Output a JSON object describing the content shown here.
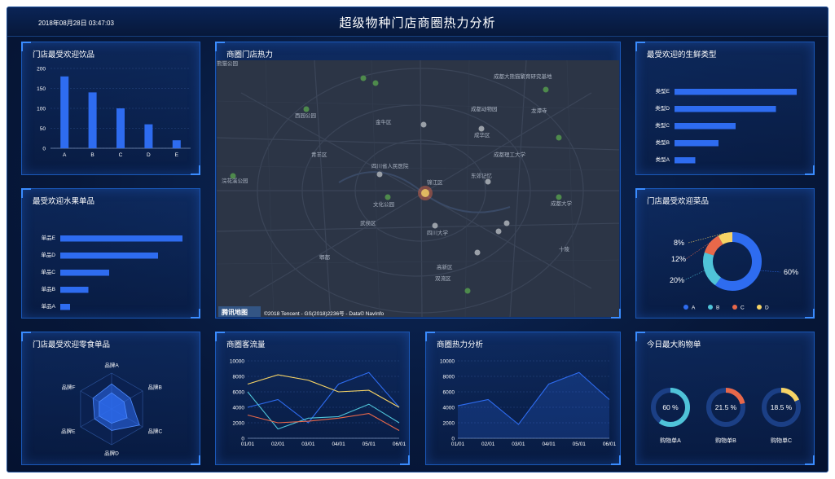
{
  "header": {
    "title": "超级物种门店商圈热力分析",
    "time": "2018年08月28日 03:47:03"
  },
  "panels": {
    "drinks": {
      "title": "门店最受欢迎饮品"
    },
    "map": {
      "title": "商圈门店热力"
    },
    "fresh": {
      "title": "最受欢迎的生鲜类型"
    },
    "fruit": {
      "title": "最受欢迎水果单品"
    },
    "dishes": {
      "title": "门店最受欢迎菜品"
    },
    "snacks": {
      "title": "门店最受欢迎零食单品"
    },
    "traffic": {
      "title": "商圈客流量"
    },
    "heat": {
      "title": "商圈热力分析"
    },
    "orders": {
      "title": "今日最大购物单"
    }
  },
  "map": {
    "labels": {
      "north": "熊猫公园",
      "chenghua": "成华区",
      "jinniu": "金牛区",
      "qingyang": "青羊区",
      "wuhou": "武侯区",
      "jinjiang": "锦江区",
      "gaoxin": "高新区",
      "shuangliu": "双流区",
      "pixian": "郫都",
      "sichuan_museum": "四川省人民医院",
      "sichuan_univ": "四川大学",
      "chengdu_uni": "成都大学",
      "culture_park": "文化公园",
      "xiyuan": "西园公园",
      "dongjiao": "东郊记忆",
      "tech_univ": "成都理工大学",
      "chengdu_zoo": "成都动物园",
      "panda_base": "成都大熊猫繁育研究基地",
      "huanhua": "浣花溪公园",
      "longtan": "龙潭寺",
      "shiling": "十陵"
    },
    "watermark": "腾讯地图",
    "copyright": "©2018 Tencent - GS(2018)2236号 - Data© NavInfo"
  },
  "chart_data": [
    {
      "type": "bar",
      "title": "门店最受欢迎饮品",
      "categories": [
        "A",
        "B",
        "C",
        "D",
        "E"
      ],
      "values": [
        180,
        140,
        100,
        60,
        20
      ],
      "ylim": [
        0,
        200
      ],
      "yticks": [
        0,
        50,
        100,
        150,
        200
      ],
      "color": "#2e6cf0"
    },
    {
      "type": "bar",
      "orientation": "horizontal",
      "title": "最受欢迎的生鲜类型",
      "categories": [
        "类型E",
        "类型D",
        "类型C",
        "类型B",
        "类型A"
      ],
      "values": [
        100,
        83,
        50,
        36,
        17
      ],
      "color": "#2e6cf0"
    },
    {
      "type": "bar",
      "orientation": "horizontal",
      "title": "最受欢迎水果单品",
      "categories": [
        "单品E",
        "单品D",
        "单品C",
        "单品B",
        "单品A"
      ],
      "values": [
        100,
        80,
        40,
        23,
        8
      ],
      "color": "#2e6cf0"
    },
    {
      "type": "pie",
      "title": "门店最受欢迎菜品",
      "categories": [
        "A",
        "B",
        "C",
        "D"
      ],
      "values": [
        60,
        20,
        12,
        8
      ],
      "labels": [
        "60%",
        "20%",
        "12%",
        "8%"
      ],
      "colors": [
        "#2e6cf0",
        "#4fc3d8",
        "#e8684a",
        "#f6d365"
      ]
    },
    {
      "type": "radar",
      "title": "门店最受欢迎零食单品",
      "categories": [
        "品牌A",
        "品牌B",
        "品牌C",
        "品牌D",
        "品牌E",
        "品牌F"
      ],
      "series": [
        {
          "values": [
            0.7,
            0.6,
            0.9,
            0.6,
            0.55,
            0.6
          ]
        },
        {
          "values": [
            0.45,
            0.4,
            0.5,
            0.4,
            0.4,
            0.4
          ]
        }
      ]
    },
    {
      "type": "line",
      "title": "商圈客流量",
      "x": [
        "01/01",
        "02/01",
        "03/01",
        "04/01",
        "05/01",
        "06/01"
      ],
      "ylim": [
        0,
        10000
      ],
      "yticks": [
        0,
        2000,
        4000,
        6000,
        8000,
        10000
      ],
      "series": [
        {
          "color": "#2e6cf0",
          "values": [
            4000,
            5000,
            2000,
            7000,
            8500,
            4000
          ]
        },
        {
          "color": "#f6d365",
          "values": [
            7000,
            8200,
            7500,
            6000,
            6200,
            4000
          ]
        },
        {
          "color": "#4fc3d8",
          "values": [
            6000,
            1200,
            2600,
            2800,
            4400,
            2000
          ]
        },
        {
          "color": "#e8684a",
          "values": [
            3000,
            2000,
            2200,
            2600,
            3200,
            1000
          ]
        }
      ]
    },
    {
      "type": "area",
      "title": "商圈热力分析",
      "x": [
        "01/01",
        "02/01",
        "03/01",
        "04/01",
        "05/01",
        "06/01"
      ],
      "ylim": [
        0,
        10000
      ],
      "yticks": [
        0,
        2000,
        4000,
        6000,
        8000,
        10000
      ],
      "series": [
        {
          "color": "#2e6cf0",
          "values": [
            4200,
            5000,
            1800,
            7000,
            8500,
            5000
          ]
        }
      ]
    },
    {
      "type": "pie",
      "title": "今日最大购物单",
      "gauges": [
        {
          "name": "购物单A",
          "value": 60,
          "label": "60 %",
          "color": "#4fc3d8"
        },
        {
          "name": "购物单B",
          "value": 21.5,
          "label": "21.5 %",
          "color": "#e8684a"
        },
        {
          "name": "购物单C",
          "value": 18.5,
          "label": "18.5 %",
          "color": "#f6d365"
        }
      ]
    }
  ]
}
